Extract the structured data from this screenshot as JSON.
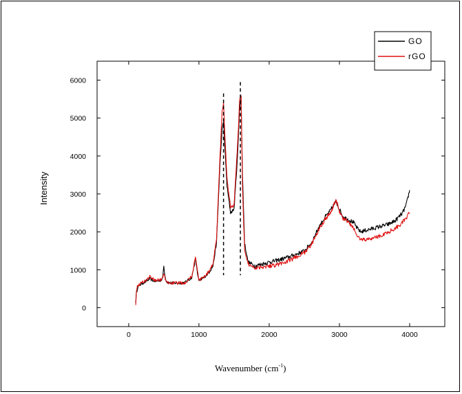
{
  "chart_data": {
    "type": "line",
    "title": "",
    "xlabel": "Wavenumber (cm",
    "xlabel_sup": "-1",
    "xlabel_close": ")",
    "ylabel": "Intensity",
    "xlim": [
      -450,
      4500
    ],
    "ylim": [
      -500,
      6500
    ],
    "xticks": [
      0,
      1000,
      2000,
      3000,
      4000
    ],
    "xtick_labels": [
      "0",
      "1000",
      "2000",
      "3000",
      "4000"
    ],
    "yticks": [
      0,
      1000,
      2000,
      3000,
      4000,
      5000,
      6000
    ],
    "ytick_labels": [
      "0",
      "1000",
      "2000",
      "3000",
      "4000",
      "5000",
      "6000"
    ],
    "grid": false,
    "legend_position": "top-right",
    "annotations": [
      {
        "type": "dashed-vline",
        "x": 1350,
        "y_top": 5650
      },
      {
        "type": "dashed-vline",
        "x": 1590,
        "y_top": 5950
      }
    ],
    "series": [
      {
        "name": "GO",
        "color": "#000000",
        "x": [
          100,
          110,
          130,
          160,
          200,
          250,
          300,
          340,
          380,
          430,
          480,
          500,
          520,
          540,
          560,
          600,
          700,
          800,
          900,
          950,
          980,
          1000,
          1050,
          1100,
          1150,
          1200,
          1250,
          1300,
          1330,
          1350,
          1370,
          1400,
          1450,
          1500,
          1550,
          1580,
          1600,
          1620,
          1650,
          1700,
          1800,
          1900,
          2000,
          2100,
          2200,
          2300,
          2400,
          2500,
          2600,
          2700,
          2800,
          2850,
          2900,
          2950,
          3000,
          3050,
          3100,
          3150,
          3200,
          3250,
          3300,
          3400,
          3500,
          3600,
          3700,
          3800,
          3900,
          3950,
          4000
        ],
        "y": [
          150,
          400,
          550,
          600,
          650,
          700,
          760,
          720,
          700,
          710,
          750,
          1100,
          800,
          680,
          660,
          650,
          650,
          660,
          800,
          1300,
          900,
          700,
          770,
          850,
          950,
          1100,
          1700,
          3800,
          4700,
          4900,
          4200,
          3200,
          2500,
          2600,
          4000,
          5300,
          5550,
          3500,
          1700,
          1200,
          1100,
          1150,
          1200,
          1240,
          1290,
          1350,
          1420,
          1500,
          1700,
          2100,
          2400,
          2500,
          2650,
          2800,
          2600,
          2400,
          2350,
          2300,
          2250,
          2100,
          2000,
          2050,
          2100,
          2150,
          2200,
          2300,
          2500,
          2700,
          3100
        ]
      },
      {
        "name": "rGO",
        "color": "#e01010",
        "x": [
          100,
          110,
          130,
          160,
          200,
          250,
          300,
          340,
          380,
          430,
          480,
          500,
          520,
          540,
          560,
          600,
          700,
          800,
          900,
          950,
          980,
          1000,
          1050,
          1100,
          1150,
          1200,
          1250,
          1300,
          1330,
          1350,
          1370,
          1400,
          1450,
          1500,
          1550,
          1580,
          1600,
          1620,
          1650,
          1700,
          1800,
          1900,
          2000,
          2100,
          2200,
          2300,
          2400,
          2500,
          2600,
          2700,
          2800,
          2850,
          2900,
          2950,
          3000,
          3050,
          3100,
          3150,
          3200,
          3250,
          3300,
          3400,
          3500,
          3600,
          3700,
          3800,
          3900,
          3950,
          4000
        ],
        "y": [
          100,
          450,
          600,
          620,
          680,
          720,
          820,
          760,
          720,
          730,
          760,
          900,
          750,
          680,
          660,
          650,
          650,
          660,
          830,
          1350,
          950,
          720,
          780,
          860,
          980,
          1150,
          1800,
          4000,
          5200,
          5400,
          4500,
          3400,
          2650,
          2700,
          4300,
          5500,
          5600,
          3200,
          1500,
          1150,
          1050,
          1080,
          1100,
          1130,
          1180,
          1250,
          1350,
          1450,
          1650,
          2050,
          2350,
          2450,
          2600,
          2850,
          2550,
          2350,
          2300,
          2200,
          2100,
          1900,
          1800,
          1800,
          1850,
          1900,
          2000,
          2100,
          2250,
          2350,
          2500
        ]
      }
    ]
  }
}
